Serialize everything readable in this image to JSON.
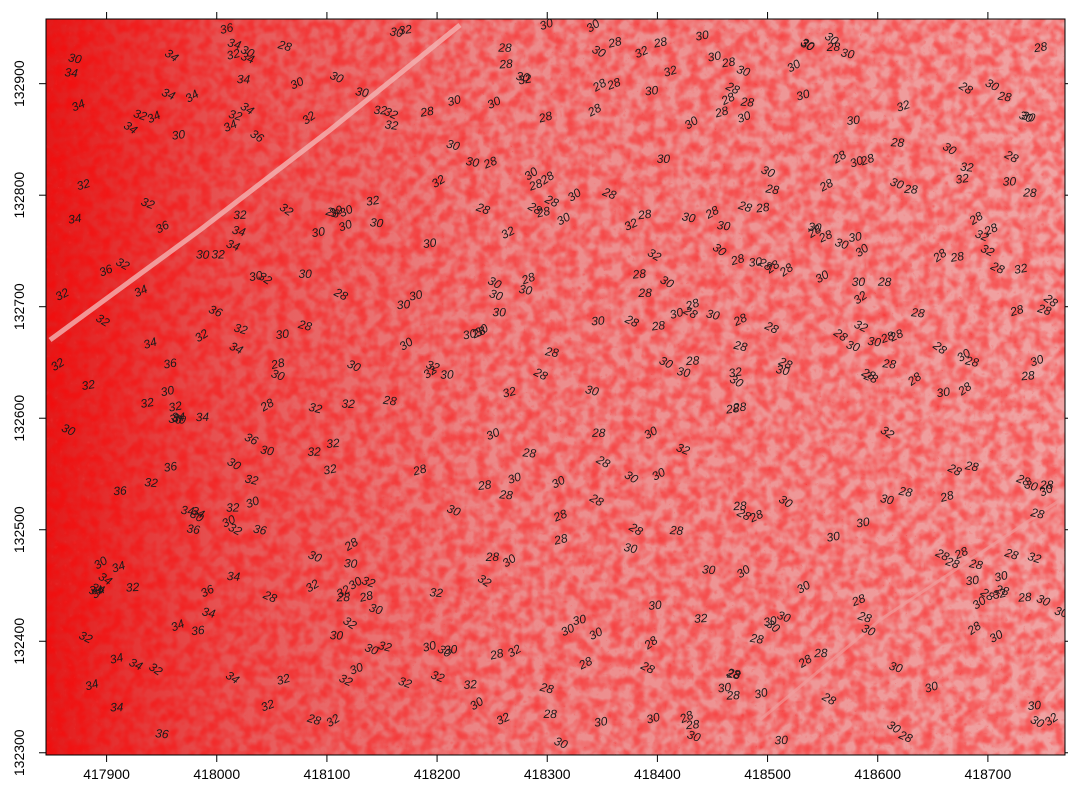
{
  "map": {
    "type": "contour-raster",
    "palette": {
      "low": "#f2a8a8",
      "mid": "#e96a6a",
      "high": "#e31a1a",
      "contour_line": "#ff0000",
      "label_text": "#1a1a1a"
    },
    "x_axis": {
      "range": [
        417845,
        418770
      ],
      "ticks": [
        "417900",
        "418000",
        "418100",
        "418200",
        "418300",
        "418400",
        "418500",
        "418600",
        "418700"
      ]
    },
    "y_axis": {
      "range": [
        132298,
        132958
      ],
      "ticks": [
        "132300",
        "132400",
        "132500",
        "132600",
        "132700",
        "132800",
        "132900"
      ]
    },
    "contour_levels": [
      "28",
      "30",
      "32",
      "34",
      "36"
    ]
  }
}
